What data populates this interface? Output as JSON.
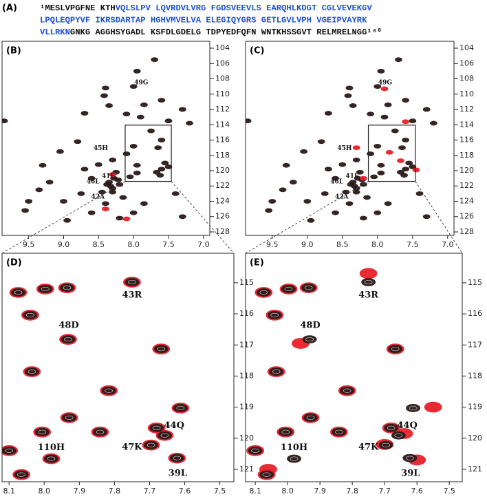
{
  "sequence": {
    "label": "(A)",
    "lines": [
      [
        {
          "text": "¹MESLVPGFNE KTH",
          "color": "#111111"
        },
        {
          "text": "VQLSLPV LQVRDVLVRG FGDSVEEVLS EARQHLKDGT CGLVEVEKGV",
          "color": "#1f4fd8"
        }
      ],
      [
        {
          "text": "LPQLEQPYVF IKRSDARTAP HGHVMVELVA ELEGIQYGRS GETLGVLVPH VGEIPVAYRK",
          "color": "#1f4fd8"
        }
      ],
      [
        {
          "text": "VLLRKN",
          "color": "#1f4fd8"
        },
        {
          "text": "GNKG AGGHSYGADL KSFDLGDELG TDPYEDFQFN WNTKHSSGVT RELMRELNGG¹⁸⁰",
          "color": "#111111"
        }
      ]
    ]
  },
  "chart_data": [
    {
      "type": "scatter",
      "panel": "(B)",
      "xlim": [
        9.88,
        6.91
      ],
      "ylim": [
        103.1,
        128.45
      ],
      "xticks": [
        9.5,
        {
          "value": 9,
          "label": "9.0"
        },
        8.5,
        {
          "value": 8,
          "label": "8.0"
        },
        7.5,
        {
          "value": 7,
          "label": "7.0"
        }
      ],
      "yticks": [
        104,
        106,
        108,
        110,
        112,
        114,
        116,
        118,
        120,
        122,
        124,
        126,
        128
      ],
      "series": [
        {
          "color": "#2b1a1a",
          "x": [
            9.85,
            9.5,
            7.3,
            7.2,
            8.0,
            7.7,
            7.95,
            8.4,
            8.42,
            8.35,
            8.7,
            8.8,
            9.05,
            9.3,
            9.2,
            9.35,
            9.55,
            8.95,
            8.6,
            8.2,
            7.3,
            7.4,
            7.5,
            7.6,
            7.75,
            7.9,
            8.1,
            7.85,
            7.6,
            7.5,
            8.0,
            7.65,
            7.95,
            7.55,
            8.1,
            8.3,
            8.5,
            8.25,
            8.35,
            8.3,
            8.2,
            8.45,
            8.4,
            8.15,
            8.6,
            8.75,
            9.0,
            8.7,
            7.95,
            7.67,
            7.6,
            7.62,
            8.05,
            7.85,
            8.0,
            8.28,
            8.33,
            8.22,
            8.38,
            8.3
          ],
          "y": [
            113.5,
            124,
            112,
            113.8,
            109,
            105.5,
            107,
            109.2,
            110.2,
            111.5,
            112.5,
            116.2,
            117.5,
            119.3,
            121.5,
            122.5,
            125.2,
            126.5,
            125.5,
            126.2,
            126,
            123,
            119.5,
            116,
            114.8,
            113,
            112.6,
            111.4,
            110.8,
            113.5,
            116.8,
            117,
            119.3,
            119,
            117.8,
            118.6,
            119.2,
            120.2,
            121.5,
            122.3,
            121.8,
            122.8,
            124.3,
            123.5,
            121,
            123,
            124,
            119.8,
            120.3,
            120.2,
            119.8,
            120.6,
            120.8,
            124.3,
            125.5,
            121,
            122,
            121.2,
            121.8,
            122.8
          ]
        },
        {
          "color": "#e8202a",
          "x": [
            8.3,
            8.4,
            8.1
          ],
          "y": [
            120.5,
            125,
            126.3
          ]
        }
      ],
      "annotations": [
        {
          "text": "49G",
          "x": 7.89,
          "y": 108.5
        },
        {
          "text": "45H",
          "x": 8.47,
          "y": 117.1
        },
        {
          "text": "41E",
          "x": 8.36,
          "y": 120.7
        },
        {
          "text": "46L",
          "x": 8.58,
          "y": 121.45
        },
        {
          "text": "42A",
          "x": 8.51,
          "y": 123.4
        }
      ]
    },
    {
      "type": "scatter",
      "panel": "(C)",
      "xlim": [
        9.88,
        6.91
      ],
      "ylim": [
        103.1,
        128.45
      ],
      "xticks": [
        9.5,
        {
          "value": 9,
          "label": "9.0"
        },
        8.5,
        {
          "value": 8,
          "label": "8.0"
        },
        7.5,
        {
          "value": 7,
          "label": "7.0"
        }
      ],
      "yticks": [
        104,
        106,
        108,
        110,
        112,
        114,
        116,
        118,
        120,
        122,
        124,
        126,
        128
      ],
      "series": [
        {
          "color": "#2b1a1a",
          "x": [
            9.85,
            9.5,
            7.3,
            7.2,
            8.0,
            7.7,
            7.95,
            8.4,
            8.42,
            8.35,
            8.7,
            8.8,
            9.05,
            9.3,
            9.2,
            9.35,
            9.55,
            8.95,
            8.6,
            8.2,
            7.3,
            7.4,
            7.5,
            7.6,
            7.75,
            7.9,
            8.1,
            7.85,
            7.6,
            7.5,
            8.0,
            7.65,
            7.95,
            7.55,
            8.1,
            8.3,
            8.5,
            8.25,
            8.35,
            8.3,
            8.2,
            8.45,
            8.4,
            8.15,
            8.6,
            8.75,
            9.0,
            8.7,
            7.95,
            7.67,
            7.6,
            7.62,
            8.05,
            7.85,
            8.0,
            8.28,
            8.33,
            8.22,
            8.38,
            8.3
          ],
          "y": [
            113.5,
            124,
            112,
            113.8,
            109,
            105.5,
            107,
            109.2,
            110.2,
            111.5,
            112.5,
            116.2,
            117.5,
            119.3,
            121.5,
            122.5,
            125.2,
            126.5,
            125.5,
            126.2,
            126,
            123,
            119.5,
            116,
            114.8,
            113,
            112.6,
            111.4,
            110.8,
            113.5,
            116.8,
            117,
            119.3,
            119,
            117.8,
            118.6,
            119.2,
            120.2,
            121.5,
            122.3,
            121.8,
            122.8,
            124.3,
            123.5,
            121,
            123,
            124,
            119.8,
            120.3,
            120.2,
            119.8,
            120.6,
            120.8,
            124.3,
            125.5,
            121,
            122,
            121.2,
            121.8,
            122.8
          ]
        },
        {
          "color": "#e8202a",
          "x": [
            7.9,
            7.6,
            7.83,
            7.67,
            7.45,
            8.3,
            8.2
          ],
          "y": [
            109.3,
            113.6,
            117.6,
            118.7,
            119.9,
            117,
            121
          ]
        }
      ],
      "annotations": [
        {
          "text": "49G",
          "x": 7.89,
          "y": 108.5
        },
        {
          "text": "45H",
          "x": 8.47,
          "y": 117.1
        },
        {
          "text": "41E",
          "x": 8.36,
          "y": 120.7
        },
        {
          "text": "46L",
          "x": 8.58,
          "y": 121.45
        },
        {
          "text": "42A",
          "x": 8.51,
          "y": 123.4
        }
      ]
    },
    {
      "type": "scatter",
      "panel": "(D)",
      "xlim": [
        8.12,
        7.46
      ],
      "ylim": [
        114.05,
        121.4
      ],
      "xticks": [
        8.1,
        {
          "value": 8,
          "label": "8.0"
        },
        7.9,
        7.8,
        7.7,
        7.6,
        7.5
      ],
      "yticks": [
        115,
        116,
        117,
        118,
        119,
        120,
        121
      ],
      "series": [
        {
          "color": "#e8202a",
          "x": [
            8.074,
            8.04,
            7.997,
            7.935,
            7.75,
            7.932,
            7.667,
            8.035,
            7.816,
            7.612,
            7.929,
            7.68,
            7.657,
            7.696,
            7.622,
            8.006,
            7.841,
            7.98,
            8.1,
            8.065
          ],
          "y": [
            115.31,
            116.04,
            115.2,
            115.16,
            114.98,
            116.82,
            117.13,
            117.86,
            118.47,
            119.03,
            119.34,
            119.67,
            119.91,
            120.22,
            120.64,
            119.8,
            119.8,
            120.66,
            120.4,
            121.17
          ]
        },
        {
          "color": "#2b1a1a",
          "x": [
            8.074,
            8.04,
            7.997,
            7.935,
            7.75,
            7.932,
            7.667,
            8.035,
            7.816,
            7.612,
            7.929,
            7.68,
            7.657,
            7.696,
            7.622,
            8.006,
            7.841,
            7.98,
            8.1,
            8.065
          ],
          "y": [
            115.31,
            116.04,
            115.2,
            115.16,
            114.98,
            116.82,
            117.13,
            117.86,
            118.47,
            119.03,
            119.34,
            119.67,
            119.91,
            120.22,
            120.64,
            119.8,
            119.8,
            120.66,
            120.4,
            121.17
          ]
        }
      ],
      "annotations": [
        {
          "text": "43R",
          "x": 7.75,
          "y": 115.4
        },
        {
          "text": "48D",
          "x": 7.93,
          "y": 116.37
        },
        {
          "text": "44Q",
          "x": 7.63,
          "y": 119.6
        },
        {
          "text": "47K",
          "x": 7.75,
          "y": 120.29
        },
        {
          "text": "39L",
          "x": 7.62,
          "y": 121.13
        },
        {
          "text": "110H",
          "x": 7.98,
          "y": 120.3
        }
      ]
    },
    {
      "type": "scatter",
      "panel": "(E)",
      "xlim": [
        8.13,
        7.46
      ],
      "ylim": [
        114.05,
        121.4
      ],
      "xticks": [
        8.1,
        {
          "value": 8,
          "label": "8.0"
        },
        7.9,
        7.8,
        7.7,
        7.6,
        7.5
      ],
      "yticks": [
        115,
        116,
        117,
        118,
        119,
        120,
        121
      ],
      "series": [
        {
          "color": "#e8202a",
          "x": [
            8.074,
            8.04,
            7.997,
            7.935,
            7.75,
            7.96,
            7.667,
            8.035,
            7.816,
            7.55,
            7.929,
            7.68,
            7.64,
            7.7,
            7.6,
            8.006,
            7.841,
            8.06,
            8.1,
            8.065
          ],
          "y": [
            115.31,
            116.04,
            115.2,
            115.16,
            114.7,
            116.95,
            117.13,
            117.86,
            118.47,
            119.0,
            119.34,
            119.67,
            119.85,
            120.2,
            120.7,
            119.8,
            119.8,
            121.0,
            120.4,
            121.17
          ]
        },
        {
          "color": "#2b1a1a",
          "x": [
            8.074,
            8.04,
            7.997,
            7.935,
            7.75,
            7.932,
            7.667,
            8.035,
            7.816,
            7.612,
            7.929,
            7.68,
            7.657,
            7.696,
            7.622,
            8.006,
            7.841,
            7.98,
            8.1,
            8.065
          ],
          "y": [
            115.31,
            116.04,
            115.2,
            115.16,
            114.98,
            116.82,
            117.13,
            117.86,
            118.47,
            119.03,
            119.34,
            119.67,
            119.91,
            120.22,
            120.64,
            119.8,
            119.8,
            120.66,
            120.4,
            121.17
          ]
        }
      ],
      "annotations": [
        {
          "text": "43R",
          "x": 7.75,
          "y": 115.4
        },
        {
          "text": "48D",
          "x": 7.93,
          "y": 116.37
        },
        {
          "text": "44Q",
          "x": 7.63,
          "y": 119.6
        },
        {
          "text": "47K",
          "x": 7.75,
          "y": 120.29
        },
        {
          "text": "39L",
          "x": 7.62,
          "y": 121.13
        },
        {
          "text": "110H",
          "x": 7.98,
          "y": 120.3
        }
      ]
    }
  ]
}
